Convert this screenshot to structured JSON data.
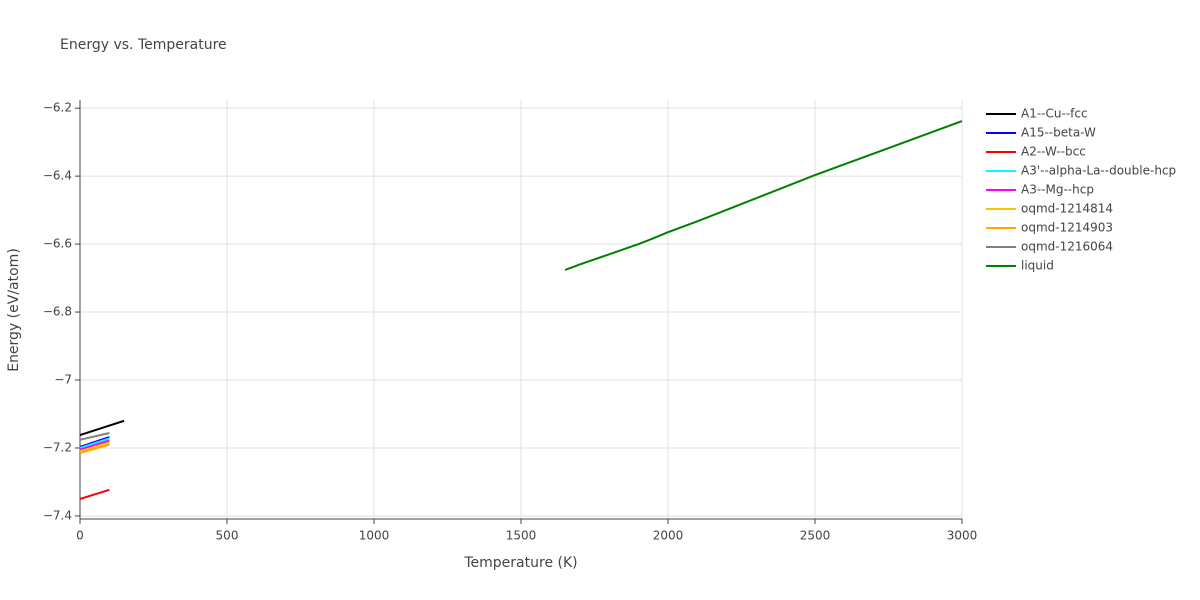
{
  "chart_data": {
    "type": "line",
    "title": "Energy vs. Temperature",
    "x_label": "Temperature (K)",
    "y_label": "Energy (eV/atom)",
    "xlim": [
      0,
      3000
    ],
    "xticks": [
      0,
      500,
      1000,
      1500,
      2000,
      2500,
      3000
    ],
    "ylim": [
      -7.409,
      -6.176
    ],
    "yticks": [
      {
        "value": -7.4,
        "label": "−7.4"
      },
      {
        "value": -7.2,
        "label": "−7.2"
      },
      {
        "value": -7,
        "label": "−7"
      },
      {
        "value": -6.8,
        "label": "−6.8"
      },
      {
        "value": -6.6,
        "label": "−6.6"
      },
      {
        "value": -6.4,
        "label": "−6.4"
      },
      {
        "value": -6.2,
        "label": "−6.2"
      }
    ],
    "grid": true,
    "legend": "right",
    "series": [
      {
        "name": "A1--Cu--fcc",
        "color": "#000000",
        "x": [
          0,
          150
        ],
        "values": [
          -7.162,
          -7.12
        ]
      },
      {
        "name": "A15--beta-W",
        "color": "#0000ff",
        "x": [
          0,
          100
        ],
        "values": [
          -7.197,
          -7.168
        ]
      },
      {
        "name": "A2--W--bcc",
        "color": "#ff0000",
        "x": [
          0,
          100
        ],
        "values": [
          -7.35,
          -7.323
        ]
      },
      {
        "name": "A3'--alpha-La--double-hcp",
        "color": "#00ffff",
        "x": [
          0,
          100
        ],
        "values": [
          -7.2,
          -7.172
        ]
      },
      {
        "name": "A3--Mg--hcp",
        "color": "#ff00ff",
        "x": [
          0,
          100
        ],
        "values": [
          -7.205,
          -7.178
        ]
      },
      {
        "name": "oqmd-1214814",
        "color": "#ffc000",
        "x": [
          0,
          100
        ],
        "values": [
          -7.21,
          -7.184
        ]
      },
      {
        "name": "oqmd-1214903",
        "color": "#ffa500",
        "x": [
          0,
          100
        ],
        "values": [
          -7.215,
          -7.19
        ]
      },
      {
        "name": "oqmd-1216064",
        "color": "#808080",
        "x": [
          0,
          100
        ],
        "values": [
          -7.176,
          -7.156
        ]
      },
      {
        "name": "liquid",
        "color": "#008000",
        "x": [
          1650,
          1700,
          1800,
          1900,
          1950,
          2000,
          2100,
          2500,
          3000
        ],
        "values": [
          -6.676,
          -6.66,
          -6.63,
          -6.6,
          -6.583,
          -6.565,
          -6.533,
          -6.397,
          -6.238
        ]
      }
    ]
  }
}
